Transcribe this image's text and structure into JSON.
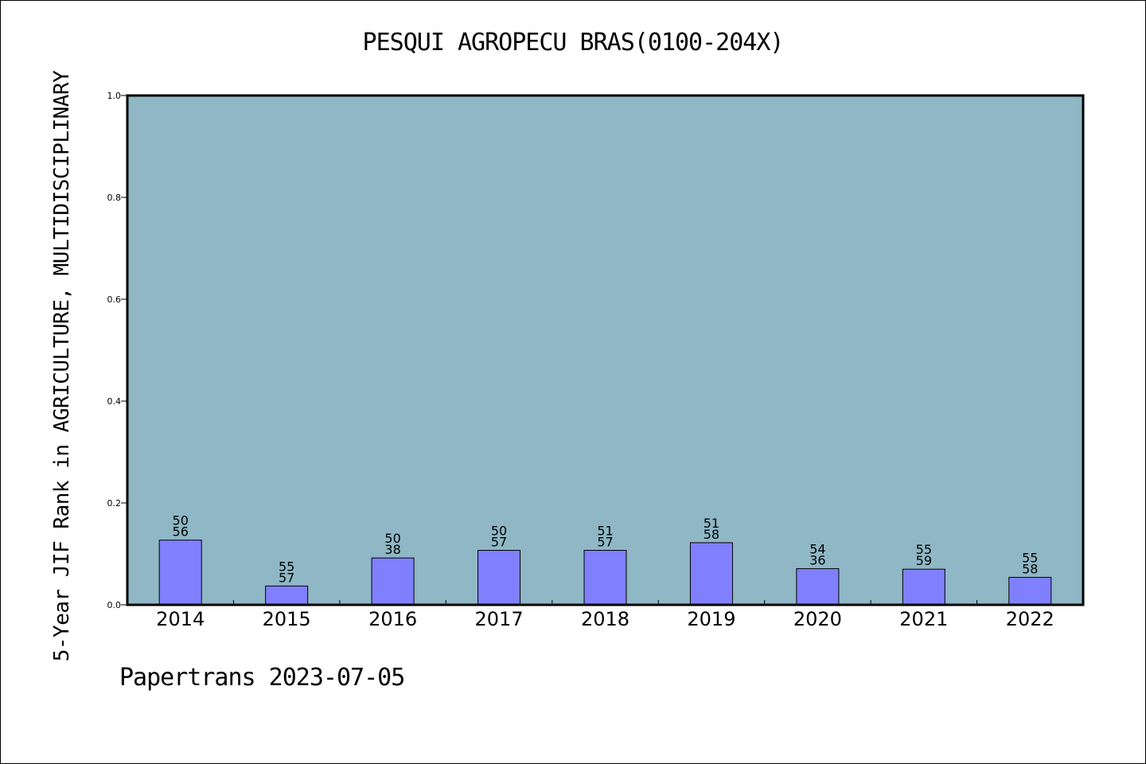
{
  "chart_data": {
    "type": "bar",
    "title": "PESQUI AGROPECU BRAS(0100-204X)",
    "ylabel": "5-Year JIF Rank in AGRICULTURE, MULTIDISCIPLINARY",
    "xlabel": "",
    "categories": [
      "2014",
      "2015",
      "2016",
      "2017",
      "2018",
      "2019",
      "2020",
      "2021",
      "2022"
    ],
    "values": [
      0.127,
      0.037,
      0.092,
      0.107,
      0.107,
      0.122,
      0.071,
      0.07,
      0.054
    ],
    "bar_labels": [
      [
        "50",
        "56"
      ],
      [
        "55",
        "57"
      ],
      [
        "50",
        "38"
      ],
      [
        "50",
        "57"
      ],
      [
        "51",
        "57"
      ],
      [
        "51",
        "58"
      ],
      [
        "54",
        "36"
      ],
      [
        "55",
        "59"
      ],
      [
        "55",
        "58"
      ]
    ],
    "ylim": [
      0,
      1.0
    ],
    "yticks": [
      "0.0",
      "0.2",
      "0.4",
      "0.6",
      "0.8",
      "1.0"
    ],
    "grid": false,
    "colors": {
      "plot_background": "#8fb7c5",
      "bar": "#8080ff",
      "bar_edge": "#000000",
      "axis": "#000000"
    }
  },
  "footer": "Papertrans 2023-07-05"
}
